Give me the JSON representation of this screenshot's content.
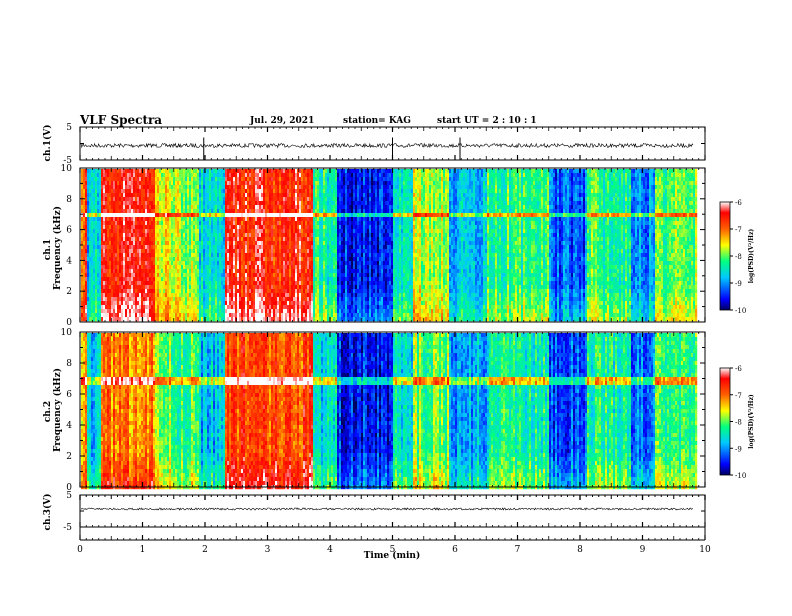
{
  "header": {
    "title": "VLF Spectra",
    "date": "Jul. 29, 2021",
    "station": "station= KAG",
    "start": "start UT =  2 : 10 : 1"
  },
  "colors": {
    "colormap": [
      "#000060",
      "#0000ff",
      "#00c8ff",
      "#00ff80",
      "#ffff00",
      "#ff6000",
      "#ff0000",
      "#ffffff"
    ],
    "trace": "#000000",
    "band_line": "#ffb0b0"
  },
  "colorbar": {
    "label": "log(PSD)(V²/Hz)",
    "ticks": [
      "-6",
      "-7",
      "-8",
      "-9",
      "-10"
    ]
  },
  "chart_data": [
    {
      "type": "line",
      "panel": "waveform_ch1",
      "ylabel": "ch.1(V)",
      "yticks": [
        "5",
        "-5"
      ],
      "ylim": [
        -5,
        5
      ],
      "xlim": [
        0,
        10
      ],
      "note_spike_min": [
        1.98,
        5.0,
        6.08
      ],
      "values_summary": "noise around 0 V, amplitude ~±1 V"
    },
    {
      "type": "heatmap",
      "panel": "spectrogram_ch1",
      "ylabel": "ch.1 Frequency (kHz)",
      "yticks": [
        "0",
        "2",
        "4",
        "6",
        "8",
        "10"
      ],
      "ylim": [
        0,
        10
      ],
      "xlim": [
        0,
        10
      ],
      "zlim": [
        -10,
        -6
      ],
      "horizontal_band_khz": 7,
      "segments_min": [
        {
          "start": 0.0,
          "end": 0.1,
          "level": 0.8
        },
        {
          "start": 0.1,
          "end": 0.32,
          "level": 0.32
        },
        {
          "start": 0.32,
          "end": 1.2,
          "level": 0.86
        },
        {
          "start": 1.2,
          "end": 1.55,
          "level": 0.6
        },
        {
          "start": 1.55,
          "end": 1.9,
          "level": 0.55
        },
        {
          "start": 1.9,
          "end": 2.3,
          "level": 0.35
        },
        {
          "start": 2.3,
          "end": 3.7,
          "level": 0.86
        },
        {
          "start": 3.7,
          "end": 4.1,
          "level": 0.42
        },
        {
          "start": 4.1,
          "end": 5.0,
          "level": 0.12
        },
        {
          "start": 5.0,
          "end": 5.3,
          "level": 0.4
        },
        {
          "start": 5.3,
          "end": 5.9,
          "level": 0.55
        },
        {
          "start": 5.9,
          "end": 6.5,
          "level": 0.3
        },
        {
          "start": 6.5,
          "end": 7.5,
          "level": 0.45
        },
        {
          "start": 7.5,
          "end": 8.1,
          "level": 0.2
        },
        {
          "start": 8.1,
          "end": 8.8,
          "level": 0.45
        },
        {
          "start": 8.8,
          "end": 9.2,
          "level": 0.25
        },
        {
          "start": 9.2,
          "end": 9.85,
          "level": 0.5
        }
      ]
    },
    {
      "type": "heatmap",
      "panel": "spectrogram_ch2",
      "ylabel": "ch.2 Frequency (kHz)",
      "yticks": [
        "0",
        "2",
        "4",
        "6",
        "8",
        "10"
      ],
      "ylim": [
        0,
        10
      ],
      "xlim": [
        0,
        10
      ],
      "zlim": [
        -10,
        -6
      ],
      "horizontal_band_khz": 7,
      "segments_min": [
        {
          "start": 0.0,
          "end": 0.1,
          "level": 0.7
        },
        {
          "start": 0.1,
          "end": 0.32,
          "level": 0.3
        },
        {
          "start": 0.32,
          "end": 1.2,
          "level": 0.72
        },
        {
          "start": 1.2,
          "end": 1.55,
          "level": 0.5
        },
        {
          "start": 1.55,
          "end": 1.9,
          "level": 0.48
        },
        {
          "start": 1.9,
          "end": 2.3,
          "level": 0.3
        },
        {
          "start": 2.3,
          "end": 3.7,
          "level": 0.8
        },
        {
          "start": 3.7,
          "end": 4.1,
          "level": 0.35
        },
        {
          "start": 4.1,
          "end": 5.0,
          "level": 0.12
        },
        {
          "start": 5.0,
          "end": 5.3,
          "level": 0.35
        },
        {
          "start": 5.3,
          "end": 5.9,
          "level": 0.5
        },
        {
          "start": 5.9,
          "end": 6.5,
          "level": 0.28
        },
        {
          "start": 6.5,
          "end": 7.5,
          "level": 0.4
        },
        {
          "start": 7.5,
          "end": 8.1,
          "level": 0.18
        },
        {
          "start": 8.1,
          "end": 8.8,
          "level": 0.42
        },
        {
          "start": 8.8,
          "end": 9.2,
          "level": 0.22
        },
        {
          "start": 9.2,
          "end": 9.85,
          "level": 0.45
        }
      ]
    },
    {
      "type": "line",
      "panel": "waveform_ch3",
      "ylabel": "ch.3(V)",
      "yticks": [
        "5",
        "-5"
      ],
      "ylim": [
        -5,
        5
      ],
      "xlim": [
        0,
        10
      ],
      "values_summary": "flat trace near 0 V, small noise"
    }
  ],
  "xaxis": {
    "label": "Time (min)",
    "ticks": [
      "0",
      "1",
      "2",
      "3",
      "4",
      "5",
      "6",
      "7",
      "8",
      "9",
      "10"
    ]
  }
}
